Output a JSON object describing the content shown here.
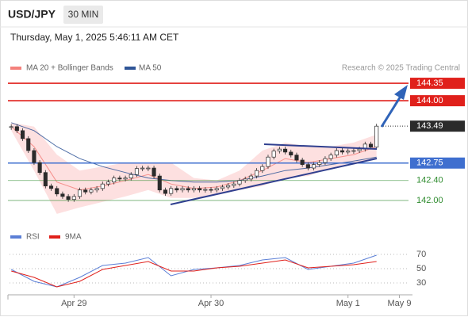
{
  "header": {
    "symbol": "USD/JPY",
    "timeframe": "30 MIN",
    "timestamp": "Thursday, May 1, 2025 5:46:11 AM CET"
  },
  "chart_data": [
    {
      "type": "candlestick",
      "credit": "Research © 2025 Trading Central",
      "up_color": "#ffffff",
      "down_color": "#2b2b2b",
      "values": [
        143.48,
        143.4,
        143.24,
        143.0,
        142.76,
        142.56,
        142.29,
        142.24,
        142.13,
        142.08,
        142.02,
        142.08,
        142.21,
        142.17,
        142.21,
        142.24,
        142.33,
        142.37,
        142.45,
        142.43,
        142.45,
        142.52,
        142.64,
        142.65,
        142.65,
        142.49,
        142.21,
        142.14,
        142.24,
        142.21,
        142.24,
        142.21,
        142.24,
        142.21,
        142.22,
        142.21,
        142.24,
        142.27,
        142.3,
        142.33,
        142.4,
        142.43,
        142.49,
        142.6,
        142.68,
        142.87,
        142.99,
        143.03,
        142.97,
        142.91,
        142.81,
        142.72,
        142.65,
        142.72,
        142.76,
        142.84,
        142.91,
        143.0,
        142.97,
        142.99,
        143.0,
        143.03,
        143.13,
        143.07,
        143.49
      ],
      "series": [
        {
          "name": "MA 20 + Bollinger Bands",
          "color": "#f4817c",
          "band_color": "#fde0e0",
          "x": [
            0,
            4,
            8,
            12,
            16,
            20,
            24,
            28,
            32,
            36,
            40,
            44,
            48,
            52,
            56,
            60,
            64
          ],
          "values": [
            143.48,
            143.08,
            142.37,
            142.21,
            142.29,
            142.4,
            142.52,
            142.33,
            142.24,
            142.27,
            142.4,
            142.6,
            142.84,
            142.76,
            142.84,
            142.92,
            143.08
          ],
          "upper": [
            143.56,
            143.48,
            142.92,
            142.6,
            142.68,
            142.76,
            142.76,
            142.76,
            142.45,
            142.4,
            142.6,
            143.0,
            143.16,
            143.08,
            143.08,
            143.16,
            143.32
          ],
          "lower": [
            143.4,
            142.6,
            141.73,
            141.86,
            141.97,
            142.08,
            142.21,
            142.05,
            142.05,
            142.11,
            142.21,
            142.29,
            142.45,
            142.49,
            142.65,
            142.76,
            142.84
          ]
        },
        {
          "name": "MA 50",
          "color": "#2f5597",
          "x": [
            0,
            4,
            8,
            12,
            16,
            20,
            24,
            28,
            32,
            36,
            40,
            44,
            48,
            52,
            56,
            60,
            64
          ],
          "values": [
            143.56,
            143.4,
            143.08,
            142.84,
            142.68,
            142.56,
            142.45,
            142.4,
            142.37,
            142.37,
            142.4,
            142.49,
            142.6,
            142.65,
            142.72,
            142.79,
            142.87
          ]
        }
      ],
      "levels": [
        {
          "value": 144.35,
          "color": "#e0201b",
          "boxed": true
        },
        {
          "value": 144,
          "label": "144.00",
          "color": "#e0201b",
          "boxed": true
        },
        {
          "value": 143.49,
          "color": "#2b2b2b",
          "boxed": true,
          "dotted": true
        },
        {
          "value": 142.75,
          "color": "#3f6fcf",
          "boxed": true
        },
        {
          "value": 142.4,
          "label": "142.40",
          "color": "#2e8b2e",
          "boxed": false
        },
        {
          "value": 142,
          "label": "142.00",
          "color": "#2e8b2e",
          "boxed": false
        }
      ],
      "xlim": [
        -0.3,
        69.6
      ],
      "ylim": [
        141.57,
        144.51
      ]
    },
    {
      "type": "line",
      "series": [
        {
          "name": "RSI",
          "color": "#5b7fd6",
          "x": [
            0,
            4,
            8,
            12,
            16,
            20,
            24,
            28,
            32,
            36,
            40,
            44,
            48,
            52,
            56,
            60,
            64
          ],
          "values": [
            48.9,
            32.2,
            24.4,
            37.8,
            54.4,
            57.8,
            65.6,
            40.0,
            48.9,
            51.1,
            54.4,
            62.2,
            65.6,
            48.9,
            53.3,
            57.8,
            68.9
          ]
        },
        {
          "name": "9MA",
          "color": "#e0201b",
          "x": [
            0,
            4,
            8,
            12,
            16,
            20,
            24,
            28,
            32,
            36,
            40,
            44,
            48,
            52,
            56,
            60,
            64
          ],
          "values": [
            46.7,
            37.8,
            24.4,
            32.2,
            48.9,
            54.4,
            60.0,
            46.7,
            46.7,
            51.1,
            53.3,
            57.8,
            62.2,
            51.1,
            53.3,
            55.6,
            60.0
          ]
        }
      ],
      "xlim": [
        -0.3,
        69.6
      ],
      "ylim": [
        13.3,
        87.8
      ],
      "yticks": [
        30,
        50,
        70
      ],
      "grid": true,
      "xticks": [
        {
          "value": 11,
          "label": "Apr 29"
        },
        {
          "value": 35,
          "label": "Apr 30"
        },
        {
          "value": 59,
          "label": "May 1"
        },
        {
          "value": 68,
          "label": "May 9"
        }
      ]
    }
  ]
}
